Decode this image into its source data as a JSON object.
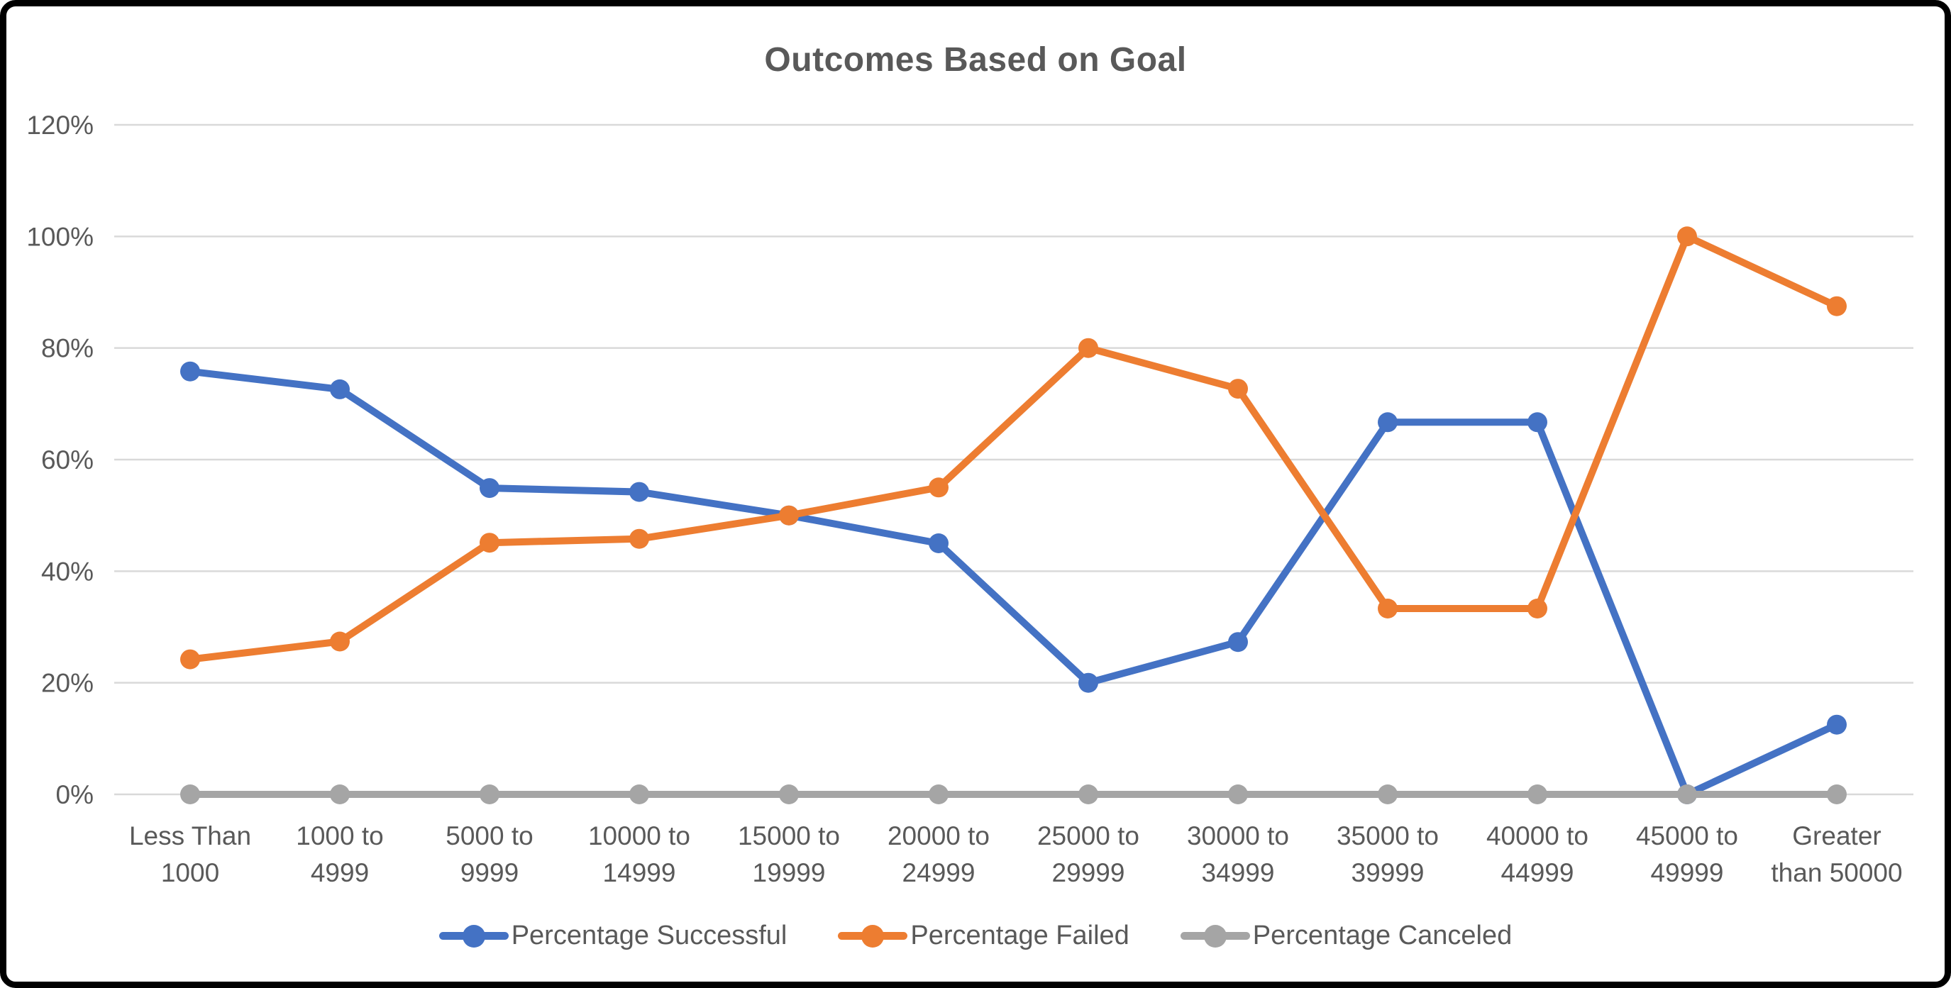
{
  "page": {
    "background_color": "#ffffff",
    "frame_color": "#000000"
  },
  "chart_data": {
    "type": "line",
    "title": "Outcomes Based on Goal",
    "categories": [
      "Less Than 1000",
      "1000 to 4999",
      "5000 to 9999",
      "10000 to 14999",
      "15000 to 19999",
      "20000 to 24999",
      "25000 to 29999",
      "30000 to 34999",
      "35000 to 39999",
      "40000 to 44999",
      "45000 to 49999",
      "Greater than 50000"
    ],
    "category_label_lines": [
      [
        "Less Than",
        "1000"
      ],
      [
        "1000 to",
        "4999"
      ],
      [
        "5000 to",
        "9999"
      ],
      [
        "10000 to",
        "14999"
      ],
      [
        "15000 to",
        "19999"
      ],
      [
        "20000 to",
        "24999"
      ],
      [
        "25000 to",
        "29999"
      ],
      [
        "30000 to",
        "34999"
      ],
      [
        "35000 to",
        "39999"
      ],
      [
        "40000 to",
        "44999"
      ],
      [
        "45000 to",
        "49999"
      ],
      [
        "Greater",
        "than 50000"
      ]
    ],
    "series": [
      {
        "name": "Percentage Successful",
        "key": "successful",
        "color": "#4472C4",
        "values": [
          75.8,
          72.6,
          54.9,
          54.2,
          50,
          45,
          20,
          27.3,
          66.7,
          66.7,
          0,
          12.5
        ]
      },
      {
        "name": "Percentage Failed",
        "key": "failed",
        "color": "#ED7D31",
        "values": [
          24.2,
          27.4,
          45.1,
          45.8,
          50,
          55,
          80,
          72.7,
          33.3,
          33.3,
          100,
          87.5
        ]
      },
      {
        "name": "Percentage Canceled",
        "key": "canceled",
        "color": "#A5A5A5",
        "values": [
          0,
          0,
          0,
          0,
          0,
          0,
          0,
          0,
          0,
          0,
          0,
          0
        ]
      }
    ],
    "ytick_labels": [
      "0%",
      "20%",
      "40%",
      "60%",
      "80%",
      "100%",
      "120%"
    ],
    "ytick_step": 20,
    "ylim": [
      0,
      120
    ],
    "grid": "horizontal",
    "legend_position": "bottom",
    "gridline_color": "#D9D9D9",
    "text_color": "#595959"
  }
}
